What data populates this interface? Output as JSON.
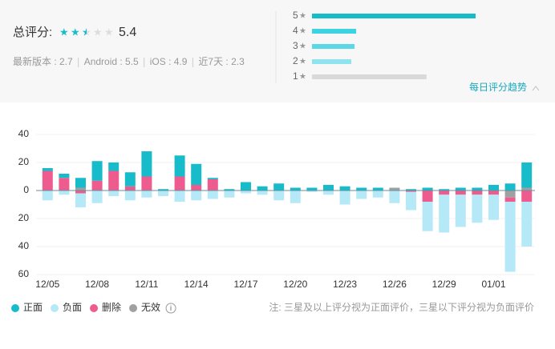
{
  "header": {
    "score_label": "总评分:",
    "score": "5.4",
    "versions": [
      "最新版本 : 2.7",
      "Android : 5.5",
      "iOS : 4.9",
      "近7天 : 2.3"
    ],
    "rating_bars": {
      "labels": [
        "5",
        "4",
        "3",
        "2",
        "1"
      ],
      "values": [
        100,
        27,
        26,
        24,
        70
      ],
      "colors": [
        "#17bccb",
        "#3ed3e3",
        "#5ad8e6",
        "#8fe3ee",
        "#d9d9d9"
      ]
    },
    "trend_link": "每日评分趋势"
  },
  "chart_data": {
    "type": "bar",
    "stacked": true,
    "categories": [
      "12/05",
      null,
      null,
      "12/08",
      null,
      null,
      "12/11",
      null,
      null,
      "12/14",
      null,
      null,
      "12/17",
      null,
      null,
      "12/20",
      null,
      null,
      "12/23",
      null,
      null,
      "12/26",
      null,
      null,
      "12/29",
      null,
      null,
      "01/01",
      null,
      null
    ],
    "series": [
      {
        "name": "正面",
        "color": "#17bccb",
        "values": [
          2,
          3,
          7,
          14,
          6,
          10,
          18,
          1,
          15,
          15,
          1,
          1,
          6,
          3,
          5,
          2,
          2,
          4,
          3,
          2,
          2,
          0,
          1,
          2,
          1,
          2,
          2,
          4,
          5,
          18
        ]
      },
      {
        "name": "负面",
        "color": "#b5e9f7",
        "values": [
          -7,
          -3,
          -10,
          -9,
          -4,
          -7,
          -5,
          -4,
          -8,
          -7,
          -6,
          -5,
          -2,
          -3,
          -7,
          -9,
          -1,
          -3,
          -10,
          -6,
          -5,
          -9,
          -13,
          -21,
          -27,
          -23,
          -20,
          -18,
          -50,
          -32
        ]
      },
      {
        "name": "删除",
        "color": "#ee5b8f",
        "values": [
          14,
          9,
          -2,
          7,
          14,
          3,
          10,
          0,
          10,
          4,
          8,
          0,
          0,
          0,
          0,
          0,
          0,
          0,
          0,
          0,
          0,
          0,
          -1,
          -8,
          -3,
          -3,
          -3,
          -3,
          -3,
          -8
        ]
      },
      {
        "name": "无效",
        "color": "#a0a0a0",
        "values": [
          0,
          0,
          2,
          0,
          0,
          0,
          0,
          0,
          0,
          0,
          0,
          0,
          0,
          0,
          0,
          0,
          0,
          0,
          0,
          0,
          0,
          2,
          0,
          0,
          0,
          0,
          0,
          0,
          -5,
          2
        ]
      }
    ],
    "ylim": [
      -60,
      40
    ],
    "yticks": [
      {
        "value": -60,
        "label": "60"
      },
      {
        "value": -40,
        "label": "40"
      },
      {
        "value": -20,
        "label": "20"
      },
      0,
      20,
      40
    ],
    "grid": true,
    "note": "注: 三星及以上评分视为正面评价，三星以下评分视为负面评价"
  }
}
